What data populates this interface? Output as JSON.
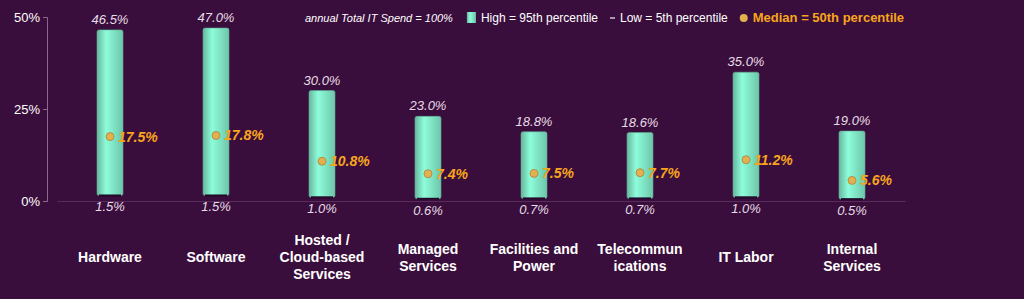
{
  "chart_data": {
    "type": "rangebar",
    "subtitle": "annual Total IT Spend = 100%",
    "categories": [
      "Hardware",
      "Software",
      "Hosted /\nCloud-based\nServices",
      "Managed\nServices",
      "Facilities and\nPower",
      "Telecommun\nications",
      "IT Labor",
      "Internal\nServices"
    ],
    "series": [
      {
        "name": "Low = 5th percentile",
        "color": "#24082a",
        "values": [
          1.5,
          1.5,
          1.0,
          0.6,
          0.7,
          0.7,
          1.0,
          0.5
        ],
        "value_labels": [
          "1.5%",
          "1.5%",
          "1.0%",
          "0.6%",
          "0.7%",
          "0.7%",
          "1.0%",
          "0.5%"
        ]
      },
      {
        "name": "High = 95th percentile",
        "color": "#7fe3c4",
        "values": [
          46.5,
          47.0,
          30.0,
          23.0,
          18.8,
          18.6,
          35.0,
          19.0
        ],
        "value_labels": [
          "46.5%",
          "47.0%",
          "30.0%",
          "23.0%",
          "18.8%",
          "18.6%",
          "35.0%",
          "19.0%"
        ]
      },
      {
        "name": "Median = 50th percentile",
        "color": "#e2b04e",
        "type": "scatter",
        "marker": "circle",
        "values": [
          17.5,
          17.8,
          10.8,
          7.4,
          7.5,
          7.7,
          11.2,
          5.6
        ],
        "value_labels": [
          "17.5%",
          "17.8%",
          "10.8%",
          "7.4%",
          "7.5%",
          "7.7%",
          "11.2%",
          "5.6%"
        ]
      }
    ],
    "ylim": [
      0,
      50
    ],
    "yticks": [
      {
        "value": 0,
        "label": "0%"
      },
      {
        "value": 25,
        "label": "25%"
      },
      {
        "value": 50,
        "label": "50%"
      }
    ],
    "grid": false,
    "legend": "top",
    "data_labels": true
  }
}
